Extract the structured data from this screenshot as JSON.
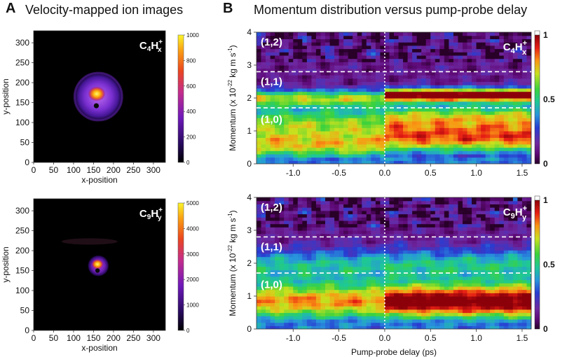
{
  "panel_a": {
    "letter": "A",
    "title": "Velocity-mapped ion images"
  },
  "panel_b": {
    "letter": "B",
    "title": "Momentum distribution versus pump-probe delay"
  },
  "colors": {
    "image_bg": "#000000",
    "ring_outer": "#5a1fa0",
    "hotspot": "#ffd21a",
    "panel_bg": "#ffffff"
  },
  "chart_data": [
    {
      "type": "heatmap",
      "id": "ion-image-c4",
      "ion_label": {
        "base": "C",
        "sub1": "4",
        "main": "H",
        "sub2": "x",
        "sup": "+"
      },
      "xlabel": "x-position",
      "ylabel": "y-position",
      "xlim": [
        0,
        330
      ],
      "ylim": [
        0,
        330
      ],
      "xticks": [
        "0",
        "50",
        "100",
        "150",
        "200",
        "250",
        "300"
      ],
      "yticks": [
        "0",
        "50",
        "100",
        "150",
        "200",
        "250",
        "300"
      ],
      "xtick_values": [
        0,
        50,
        100,
        150,
        200,
        250,
        300
      ],
      "ytick_values": [
        0,
        50,
        100,
        150,
        200,
        250,
        300
      ],
      "colorbar_range": [
        0,
        1000
      ],
      "colorbar_ticks": [
        "0",
        "200",
        "400",
        "600",
        "800",
        "1000"
      ],
      "colorbar_tick_values": [
        0,
        200,
        400,
        600,
        800,
        1000
      ],
      "center": [
        162,
        165
      ],
      "ring_radius": 62,
      "hotspot_center": [
        158,
        172
      ],
      "spot_center": [
        157,
        142
      ]
    },
    {
      "type": "heatmap",
      "id": "ion-image-c9",
      "ion_label": {
        "base": "C",
        "sub1": "9",
        "main": "H",
        "sub2": "y",
        "sup": "+"
      },
      "xlabel": "x-position",
      "ylabel": "y-position",
      "xlim": [
        0,
        330
      ],
      "ylim": [
        0,
        330
      ],
      "xticks": [
        "0",
        "50",
        "100",
        "150",
        "200",
        "250",
        "300"
      ],
      "yticks": [
        "0",
        "50",
        "100",
        "150",
        "200",
        "250",
        "300"
      ],
      "xtick_values": [
        0,
        50,
        100,
        150,
        200,
        250,
        300
      ],
      "ytick_values": [
        0,
        50,
        100,
        150,
        200,
        250,
        300
      ],
      "colorbar_range": [
        0,
        5000
      ],
      "colorbar_ticks": [
        "0",
        "1000",
        "2000",
        "3000",
        "4000",
        "5000"
      ],
      "colorbar_tick_values": [
        0,
        1000,
        2000,
        3000,
        4000,
        5000
      ],
      "center": [
        162,
        162
      ],
      "ring_radius": 28,
      "hotspot_center": [
        160,
        166
      ],
      "spot_center": [
        160,
        150
      ]
    },
    {
      "type": "heatmap",
      "id": "momentum-c4",
      "ion_label": {
        "base": "C",
        "sub1": "4",
        "main": "H",
        "sub2": "x",
        "sup": "+"
      },
      "xlabel": "",
      "ylabel": "Momentum (x 10-22 kg m s-1)",
      "ylabel_parts": {
        "pre": "Momentum (x 10",
        "exp1": "-22",
        "mid": " kg m s",
        "exp2": "-1",
        "post": ")"
      },
      "xlim": [
        -1.4,
        1.6
      ],
      "ylim": [
        0,
        4
      ],
      "xticks": [
        "-1.0",
        "-0.5",
        "0.0",
        "0.5",
        "1.0",
        "1.5"
      ],
      "xtick_values": [
        -1.0,
        -0.5,
        0.0,
        0.5,
        1.0,
        1.5
      ],
      "yticks": [
        "0",
        "1",
        "2",
        "3",
        "4"
      ],
      "ytick_values": [
        0,
        1,
        2,
        3,
        4
      ],
      "colorbar_range": [
        0,
        1
      ],
      "colorbar_ticks": [
        "0",
        "0.5",
        "1"
      ],
      "colorbar_tick_values": [
        0,
        0.5,
        1
      ],
      "region_labels": [
        "(1,2)",
        "(1,1)",
        "(1,0)"
      ],
      "region_label_y": [
        3.7,
        2.5,
        1.35
      ],
      "dashed_lines_y": [
        2.8,
        1.7
      ],
      "zero_delay_x": 0.0,
      "bands_before": [
        {
          "y": 0.55,
          "w": 0.3,
          "amp": 0.55
        },
        {
          "y": 1.25,
          "w": 0.35,
          "amp": 0.5
        },
        {
          "y": 2.0,
          "w": 0.18,
          "amp": 0.52
        }
      ],
      "bands_after": [
        {
          "y": 0.8,
          "w": 0.33,
          "amp": 0.72
        },
        {
          "y": 1.45,
          "w": 0.28,
          "amp": 0.5
        },
        {
          "y": 2.1,
          "w": 0.14,
          "amp": 0.98
        }
      ],
      "background_level": 0.12
    },
    {
      "type": "heatmap",
      "id": "momentum-c9",
      "ion_label": {
        "base": "C",
        "sub1": "9",
        "main": "H",
        "sub2": "y",
        "sup": "+"
      },
      "xlabel": "Pump-probe delay (ps)",
      "ylabel": "Momentum (x 10-22 kg m s-1)",
      "ylabel_parts": {
        "pre": "Momentum (x 10",
        "exp1": "-22",
        "mid": " kg m s",
        "exp2": "-1",
        "post": ")"
      },
      "xlim": [
        -1.4,
        1.6
      ],
      "ylim": [
        0,
        4
      ],
      "xticks": [
        "-1.0",
        "-0.5",
        "0.0",
        "0.5",
        "1.0",
        "1.5"
      ],
      "xtick_values": [
        -1.0,
        -0.5,
        0.0,
        0.5,
        1.0,
        1.5
      ],
      "yticks": [
        "0",
        "1",
        "2",
        "3",
        "4"
      ],
      "ytick_values": [
        0,
        1,
        2,
        3,
        4
      ],
      "colorbar_range": [
        0,
        1
      ],
      "colorbar_ticks": [
        "0",
        "0.5",
        "1"
      ],
      "colorbar_tick_values": [
        0,
        0.5,
        1
      ],
      "region_labels": [
        "(1,2)",
        "(1,1)",
        "(1,0)"
      ],
      "region_label_y": [
        3.7,
        2.5,
        1.35
      ],
      "dashed_lines_y": [
        2.8,
        1.7
      ],
      "zero_delay_x": 0.0,
      "bands_before": [
        {
          "y": 0.85,
          "w": 0.42,
          "amp": 0.68
        },
        {
          "y": 1.95,
          "w": 0.35,
          "amp": 0.33
        }
      ],
      "bands_after": [
        {
          "y": 0.85,
          "w": 0.38,
          "amp": 0.95
        },
        {
          "y": 1.95,
          "w": 0.35,
          "amp": 0.36
        }
      ],
      "background_level": 0.12
    }
  ]
}
